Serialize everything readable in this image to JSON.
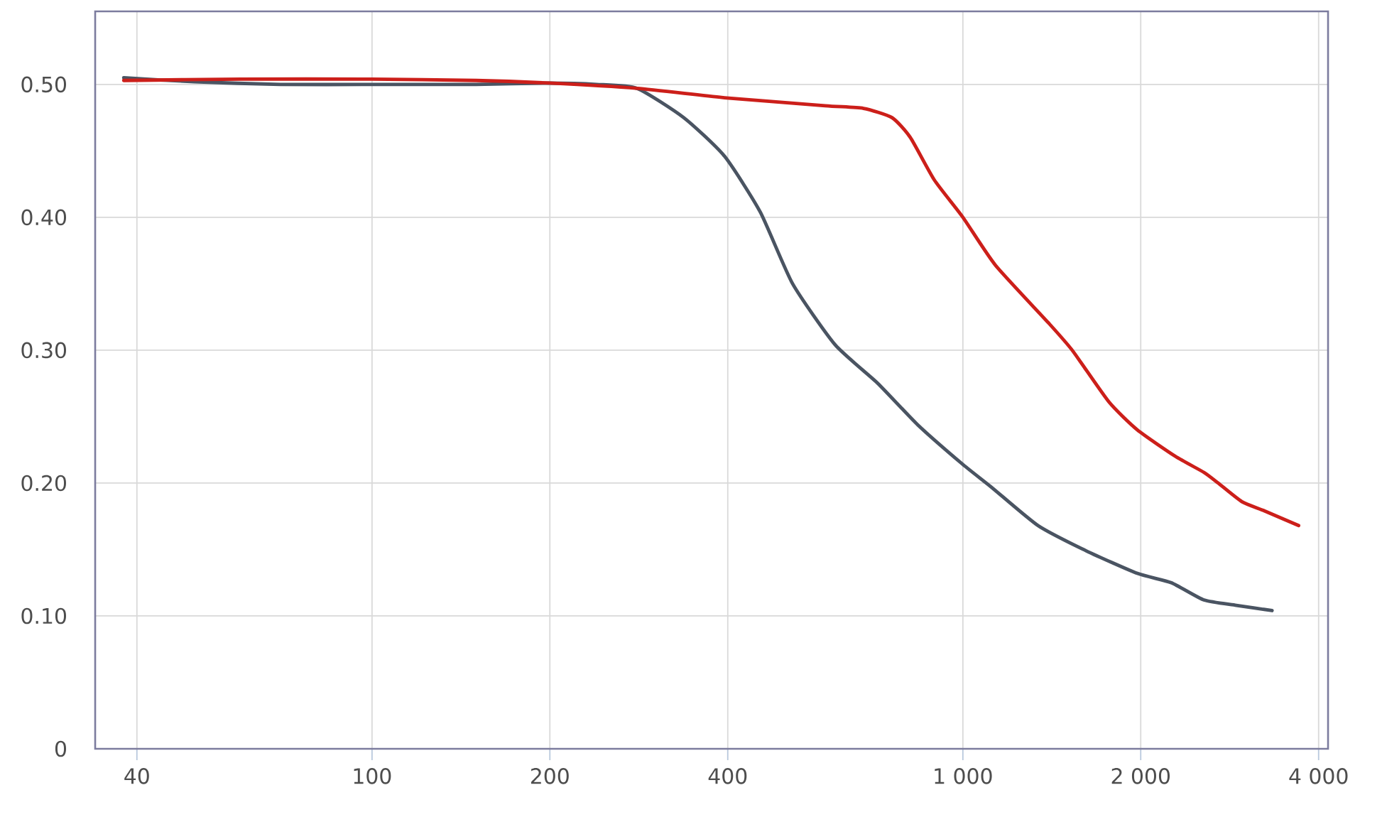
{
  "chart_data": {
    "type": "line",
    "log": "x",
    "grid": true,
    "xlim": [
      34,
      4150
    ],
    "ylim": [
      0,
      0.555
    ],
    "xticks": [
      40,
      100,
      200,
      400,
      {
        "value": 1000,
        "label": "1 000"
      },
      {
        "value": 2000,
        "label": "2 000"
      },
      {
        "value": 4000,
        "label": "4 000"
      }
    ],
    "yticks": [
      0,
      {
        "value": 0.1,
        "label": "0.10"
      },
      {
        "value": 0.2,
        "label": "0.20"
      },
      {
        "value": 0.3,
        "label": "0.30"
      },
      {
        "value": 0.4,
        "label": "0.40"
      },
      {
        "value": 0.5,
        "label": "0.50"
      }
    ],
    "series": [
      {
        "color": "#4a5462",
        "x": [
          38,
          50,
          70,
          100,
          150,
          200,
          240,
          281,
          337,
          395,
          454,
          515,
          608,
          718,
          838,
          1000,
          1117,
          1340,
          1617,
          1974,
          2253,
          2559,
          2903,
          3337
        ],
        "values": [
          0.505,
          0.502,
          0.5,
          0.5,
          0.5,
          0.501,
          0.5,
          0.497,
          0.475,
          0.446,
          0.404,
          0.35,
          0.304,
          0.275,
          0.244,
          0.214,
          0.197,
          0.168,
          0.149,
          0.132,
          0.125,
          0.112,
          0.108,
          0.104
        ]
      },
      {
        "color": "#cc1f1a",
        "x": [
          38,
          60,
          100,
          150,
          200,
          281,
          395,
          585,
          679,
          759,
          815,
          895,
          1000,
          1135,
          1393,
          1531,
          1767,
          1974,
          2291,
          2559,
          2704,
          2966,
          3242,
          3701
        ],
        "values": [
          0.503,
          0.504,
          0.504,
          0.503,
          0.501,
          0.497,
          0.49,
          0.484,
          0.482,
          0.475,
          0.46,
          0.428,
          0.4,
          0.364,
          0.321,
          0.3,
          0.261,
          0.24,
          0.22,
          0.208,
          0.2,
          0.186,
          0.179,
          0.168
        ]
      }
    ]
  }
}
